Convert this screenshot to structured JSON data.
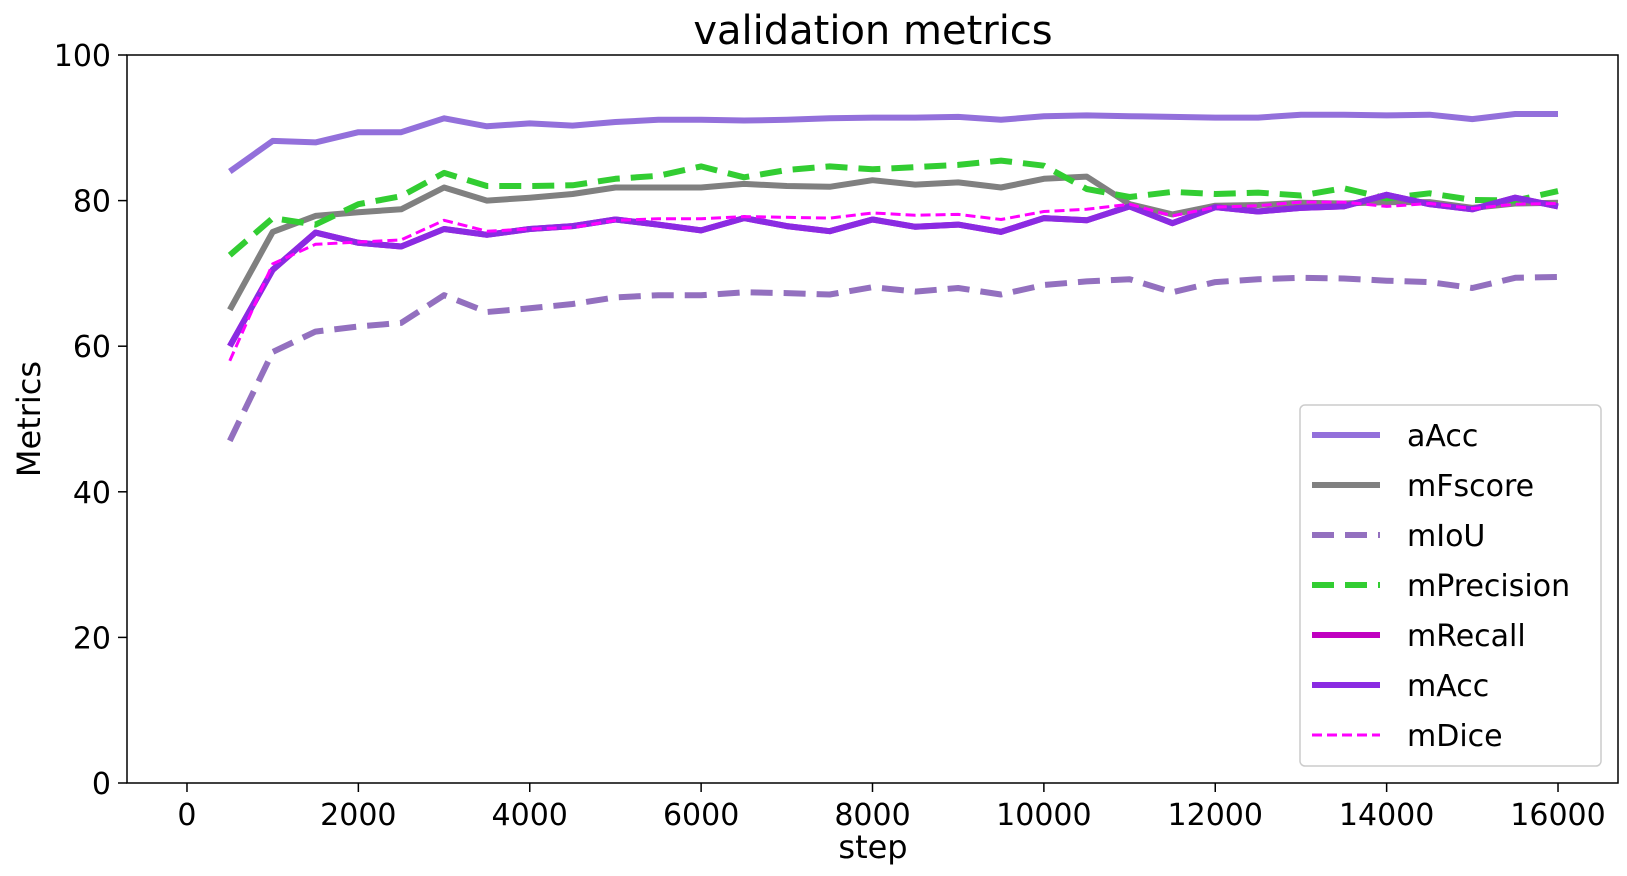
{
  "chart_data": {
    "type": "line",
    "title": "validation metrics",
    "xlabel": "step",
    "ylabel": "Metrics",
    "xlim": [
      -700,
      16700
    ],
    "ylim": [
      0,
      100
    ],
    "xticks": [
      "0",
      "2000",
      "4000",
      "6000",
      "8000",
      "10000",
      "12000",
      "14000",
      "16000"
    ],
    "yticks": [
      "0",
      "20",
      "40",
      "60",
      "80",
      "100"
    ],
    "grid": false,
    "legend_position": "lower-right",
    "x": [
      500,
      1000,
      1500,
      2000,
      2500,
      3000,
      3500,
      4000,
      4500,
      5000,
      5500,
      6000,
      6500,
      7000,
      7500,
      8000,
      8500,
      9000,
      9500,
      10000,
      10500,
      11000,
      11500,
      12000,
      12500,
      13000,
      13500,
      14000,
      14500,
      15000,
      15500,
      16000
    ],
    "series": [
      {
        "name": "aAcc",
        "color": "#9370db",
        "dash": "solid",
        "width": 6,
        "values": [
          84.0,
          88.2,
          88.0,
          89.4,
          89.4,
          91.3,
          90.2,
          90.6,
          90.3,
          90.8,
          91.1,
          91.1,
          91.0,
          91.1,
          91.3,
          91.4,
          91.4,
          91.5,
          91.1,
          91.6,
          91.7,
          91.6,
          91.5,
          91.4,
          91.4,
          91.8,
          91.8,
          91.7,
          91.8,
          91.2,
          91.9,
          91.9
        ]
      },
      {
        "name": "mFscore",
        "color": "#808080",
        "dash": "solid",
        "width": 6,
        "values": [
          65.0,
          75.7,
          77.9,
          78.4,
          78.8,
          81.8,
          80.0,
          80.4,
          80.9,
          81.8,
          81.8,
          81.8,
          82.3,
          82.0,
          81.9,
          82.8,
          82.2,
          82.5,
          81.8,
          83.0,
          83.3,
          79.5,
          78.1,
          79.3,
          79.4,
          79.7,
          79.6,
          79.8,
          79.8,
          79.0,
          79.6,
          79.7
        ]
      },
      {
        "name": "mIoU",
        "color": "#9370bf",
        "dash": "dashed",
        "width": 6,
        "values": [
          47.0,
          59.2,
          62.0,
          62.7,
          63.2,
          67.0,
          64.7,
          65.2,
          65.8,
          66.7,
          67.0,
          67.0,
          67.4,
          67.3,
          67.1,
          68.1,
          67.5,
          68.0,
          67.1,
          68.4,
          68.9,
          69.2,
          67.4,
          68.8,
          69.2,
          69.4,
          69.3,
          69.0,
          68.8,
          68.0,
          69.4,
          69.5
        ]
      },
      {
        "name": "mPrecision",
        "color": "#32cd32",
        "dash": "dashed",
        "width": 6,
        "values": [
          72.5,
          77.6,
          76.7,
          79.5,
          80.6,
          83.8,
          82.0,
          82.0,
          82.1,
          83.0,
          83.4,
          84.7,
          83.2,
          84.2,
          84.7,
          84.3,
          84.6,
          84.9,
          85.5,
          84.8,
          81.6,
          80.5,
          81.2,
          80.9,
          81.1,
          80.7,
          81.7,
          80.3,
          81.0,
          80.1,
          80.0,
          81.3
        ]
      },
      {
        "name": "mRecall",
        "color": "#c000c0",
        "dash": "solid",
        "width": 6,
        "values": [
          60.0,
          70.5,
          75.6,
          74.2,
          73.7,
          76.1,
          75.3,
          76.1,
          76.5,
          77.4,
          76.7,
          75.9,
          77.6,
          76.5,
          75.8,
          77.4,
          76.4,
          76.7,
          75.7,
          77.6,
          77.3,
          79.2,
          76.9,
          79.1,
          78.5,
          79.0,
          79.2,
          80.8,
          79.5,
          78.8,
          80.4,
          79.2
        ]
      },
      {
        "name": "mAcc",
        "color": "#8a2be2",
        "dash": "solid",
        "width": 6,
        "values": [
          60.0,
          70.5,
          75.6,
          74.2,
          73.7,
          76.1,
          75.3,
          76.1,
          76.5,
          77.4,
          76.7,
          75.9,
          77.6,
          76.5,
          75.8,
          77.4,
          76.4,
          76.7,
          75.7,
          77.6,
          77.3,
          79.2,
          76.9,
          79.1,
          78.5,
          79.0,
          79.2,
          80.8,
          79.5,
          78.8,
          80.4,
          79.2
        ]
      },
      {
        "name": "mDice",
        "color": "#ff00ff",
        "dash": "fine-dashed",
        "width": 3,
        "values": [
          58.0,
          71.3,
          74.0,
          74.3,
          74.6,
          77.3,
          75.8,
          76.1,
          76.3,
          77.3,
          77.5,
          77.5,
          77.8,
          77.7,
          77.6,
          78.3,
          78.0,
          78.1,
          77.4,
          78.5,
          78.8,
          79.5,
          77.9,
          79.1,
          79.3,
          79.8,
          79.8,
          79.2,
          79.6,
          78.9,
          79.5,
          79.6
        ]
      }
    ]
  }
}
